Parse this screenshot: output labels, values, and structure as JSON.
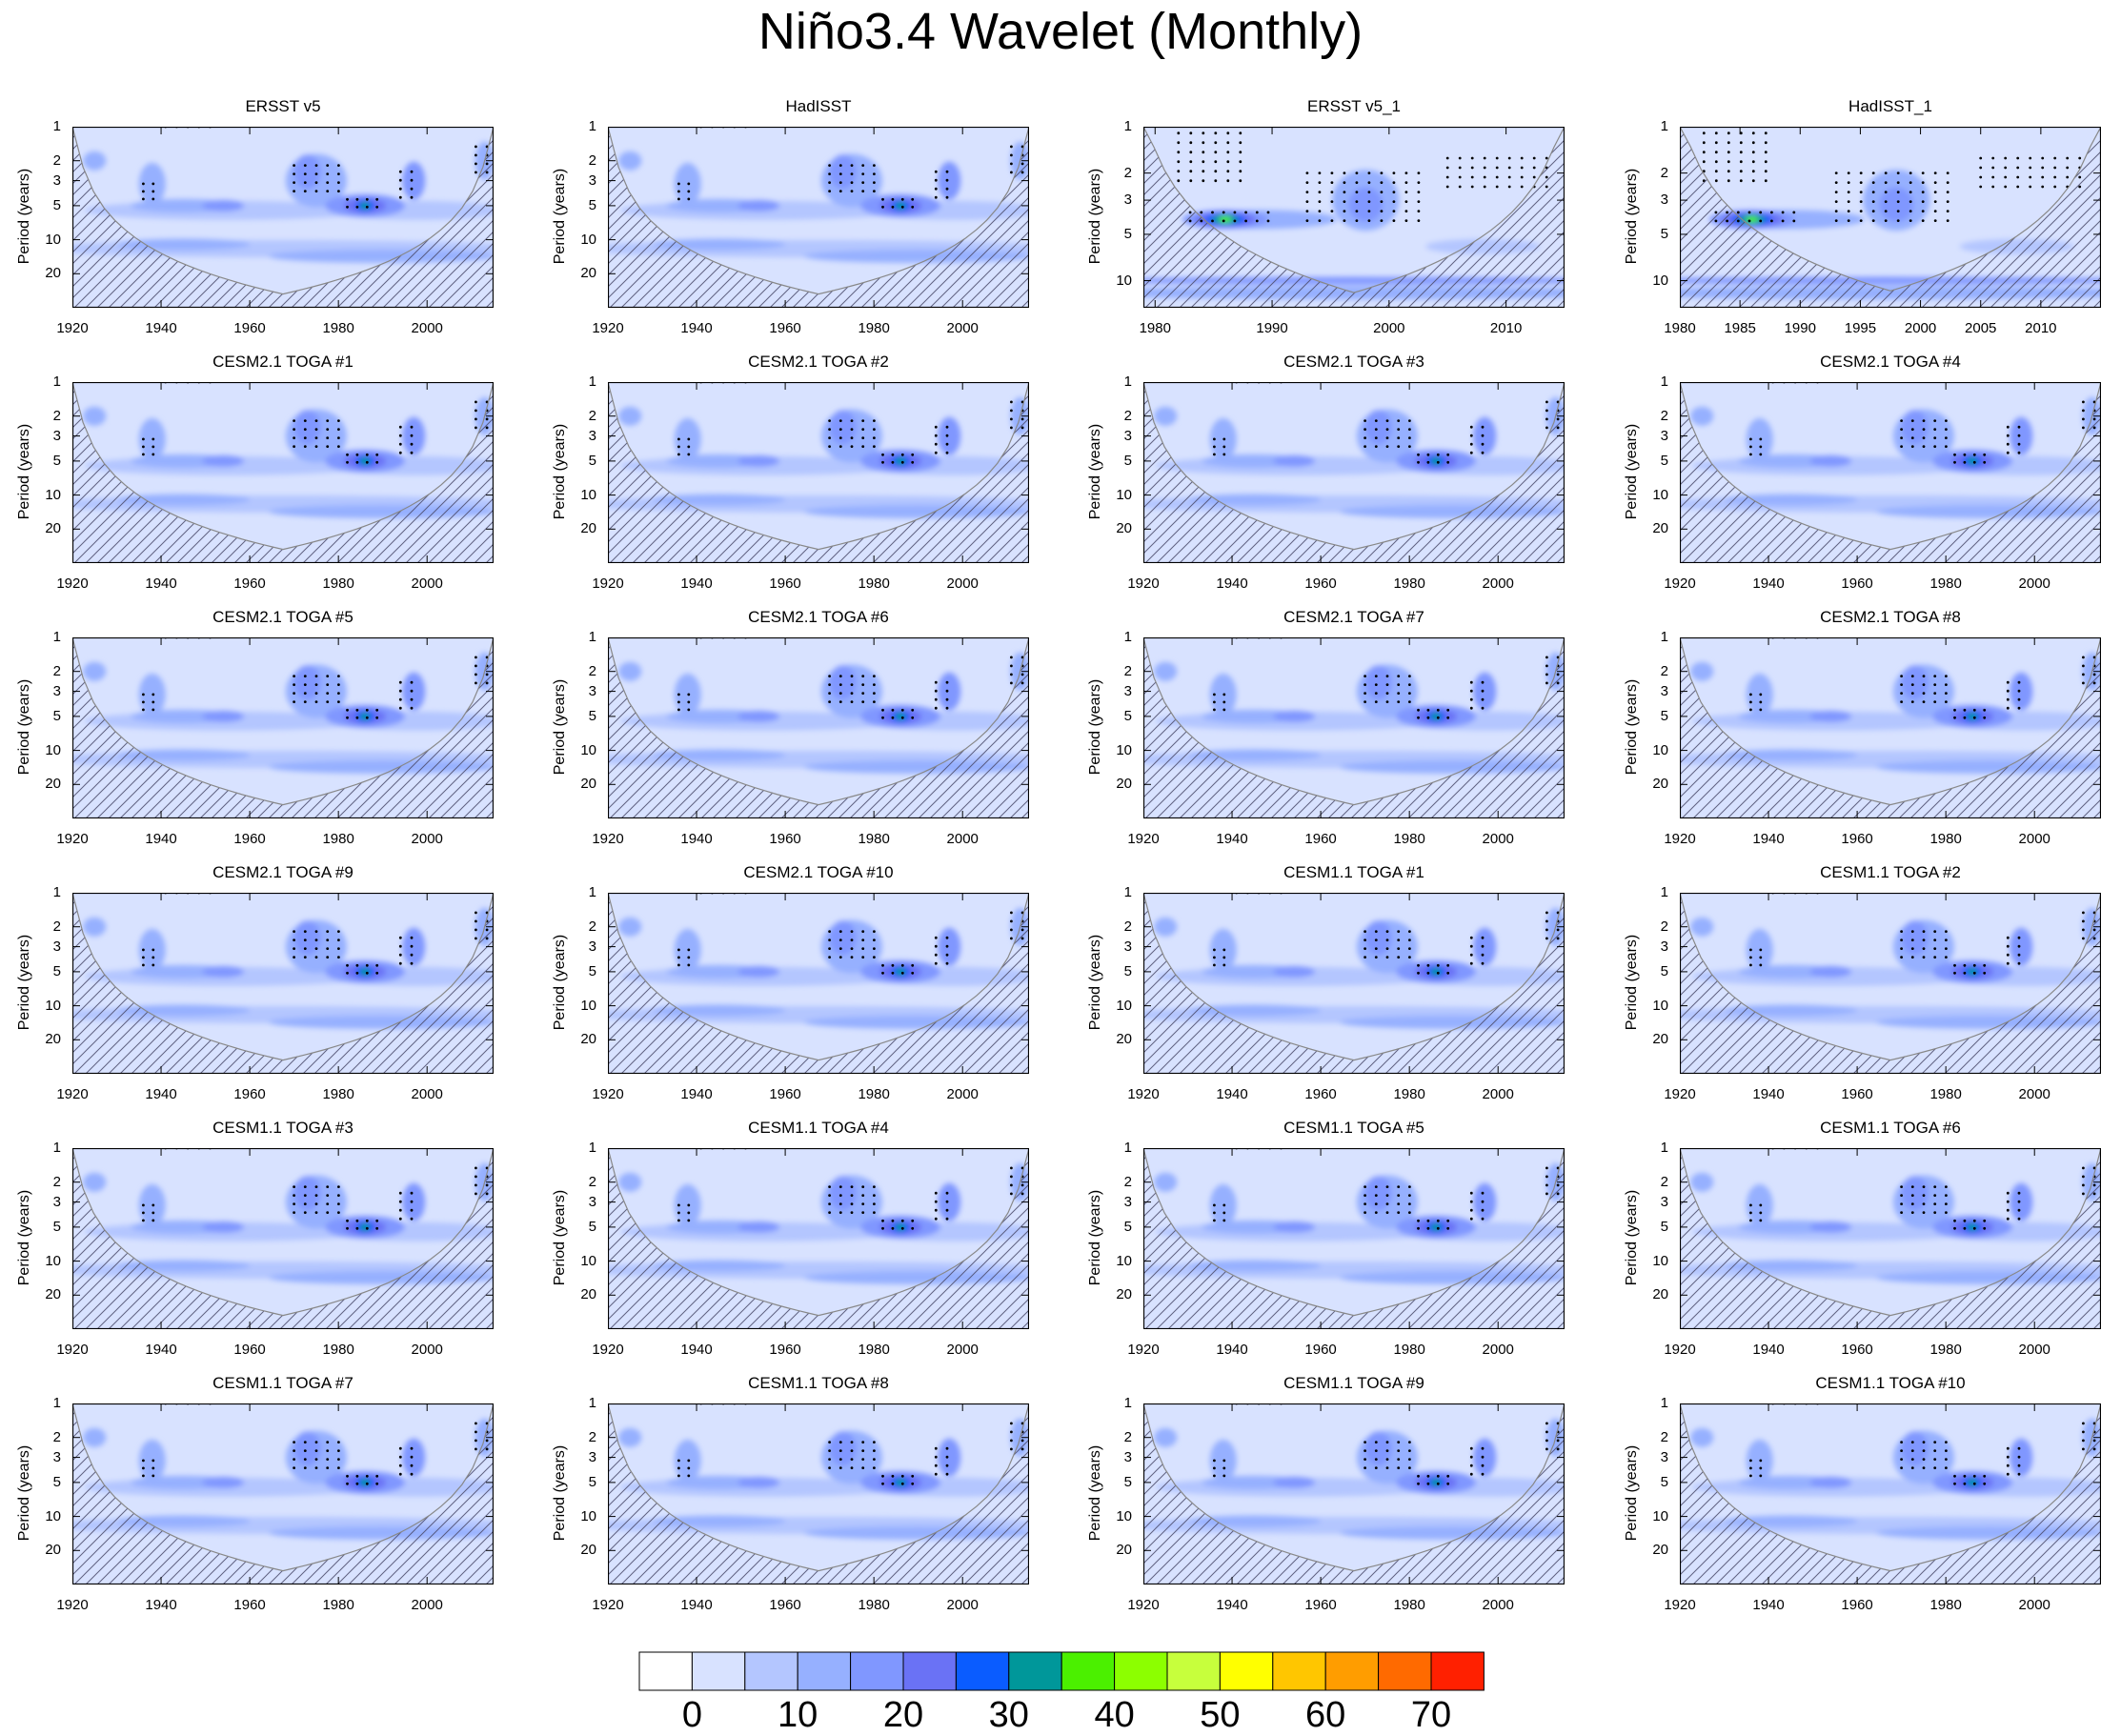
{
  "title": "Niño3.4 Wavelet (Monthly)",
  "ylabel": "Period (years)",
  "chart_data": {
    "type": "heatmap",
    "rows": 6,
    "cols": 4,
    "panels": [
      {
        "title": "ERSST v5",
        "xlim": [
          1920,
          2015
        ],
        "ylim": [
          1,
          40
        ],
        "xticks": [
          1920,
          1940,
          1960,
          1980,
          2000
        ],
        "yticks": [
          1,
          2,
          3,
          5,
          10,
          20
        ]
      },
      {
        "title": "HadISST",
        "xlim": [
          1920,
          2015
        ],
        "ylim": [
          1,
          40
        ],
        "xticks": [
          1920,
          1940,
          1960,
          1980,
          2000
        ],
        "yticks": [
          1,
          2,
          3,
          5,
          10,
          20
        ]
      },
      {
        "title": "ERSST v5_1",
        "xlim": [
          1979,
          2015
        ],
        "ylim": [
          1,
          15
        ],
        "xticks": [
          1980,
          1990,
          2000,
          2010
        ],
        "yticks": [
          1,
          2,
          3,
          5,
          10
        ]
      },
      {
        "title": "HadISST_1",
        "xlim": [
          1980,
          2015
        ],
        "ylim": [
          1,
          15
        ],
        "xticks": [
          1980,
          1985,
          1990,
          1995,
          2000,
          2005,
          2010
        ],
        "yticks": [
          1,
          2,
          3,
          5,
          10
        ]
      },
      {
        "title": "CESM2.1 TOGA #1",
        "xlim": [
          1920,
          2015
        ],
        "ylim": [
          1,
          40
        ],
        "xticks": [
          1920,
          1940,
          1960,
          1980,
          2000
        ],
        "yticks": [
          1,
          2,
          3,
          5,
          10,
          20
        ]
      },
      {
        "title": "CESM2.1 TOGA #2",
        "xlim": [
          1920,
          2015
        ],
        "ylim": [
          1,
          40
        ],
        "xticks": [
          1920,
          1940,
          1960,
          1980,
          2000
        ],
        "yticks": [
          1,
          2,
          3,
          5,
          10,
          20
        ]
      },
      {
        "title": "CESM2.1 TOGA #3",
        "xlim": [
          1920,
          2015
        ],
        "ylim": [
          1,
          40
        ],
        "xticks": [
          1920,
          1940,
          1960,
          1980,
          2000
        ],
        "yticks": [
          1,
          2,
          3,
          5,
          10,
          20
        ]
      },
      {
        "title": "CESM2.1 TOGA #4",
        "xlim": [
          1920,
          2015
        ],
        "ylim": [
          1,
          40
        ],
        "xticks": [
          1920,
          1940,
          1960,
          1980,
          2000
        ],
        "yticks": [
          1,
          2,
          3,
          5,
          10,
          20
        ]
      },
      {
        "title": "CESM2.1 TOGA #5",
        "xlim": [
          1920,
          2015
        ],
        "ylim": [
          1,
          40
        ],
        "xticks": [
          1920,
          1940,
          1960,
          1980,
          2000
        ],
        "yticks": [
          1,
          2,
          3,
          5,
          10,
          20
        ]
      },
      {
        "title": "CESM2.1 TOGA #6",
        "xlim": [
          1920,
          2015
        ],
        "ylim": [
          1,
          40
        ],
        "xticks": [
          1920,
          1940,
          1960,
          1980,
          2000
        ],
        "yticks": [
          1,
          2,
          3,
          5,
          10,
          20
        ]
      },
      {
        "title": "CESM2.1 TOGA #7",
        "xlim": [
          1920,
          2015
        ],
        "ylim": [
          1,
          40
        ],
        "xticks": [
          1920,
          1940,
          1960,
          1980,
          2000
        ],
        "yticks": [
          1,
          2,
          3,
          5,
          10,
          20
        ]
      },
      {
        "title": "CESM2.1 TOGA #8",
        "xlim": [
          1920,
          2015
        ],
        "ylim": [
          1,
          40
        ],
        "xticks": [
          1920,
          1940,
          1960,
          1980,
          2000
        ],
        "yticks": [
          1,
          2,
          3,
          5,
          10,
          20
        ]
      },
      {
        "title": "CESM2.1 TOGA #9",
        "xlim": [
          1920,
          2015
        ],
        "ylim": [
          1,
          40
        ],
        "xticks": [
          1920,
          1940,
          1960,
          1980,
          2000
        ],
        "yticks": [
          1,
          2,
          3,
          5,
          10,
          20
        ]
      },
      {
        "title": "CESM2.1 TOGA #10",
        "xlim": [
          1920,
          2015
        ],
        "ylim": [
          1,
          40
        ],
        "xticks": [
          1920,
          1940,
          1960,
          1980,
          2000
        ],
        "yticks": [
          1,
          2,
          3,
          5,
          10,
          20
        ]
      },
      {
        "title": "CESM1.1 TOGA #1",
        "xlim": [
          1920,
          2015
        ],
        "ylim": [
          1,
          40
        ],
        "xticks": [
          1920,
          1940,
          1960,
          1980,
          2000
        ],
        "yticks": [
          1,
          2,
          3,
          5,
          10,
          20
        ]
      },
      {
        "title": "CESM1.1 TOGA #2",
        "xlim": [
          1920,
          2015
        ],
        "ylim": [
          1,
          40
        ],
        "xticks": [
          1920,
          1940,
          1960,
          1980,
          2000
        ],
        "yticks": [
          1,
          2,
          3,
          5,
          10,
          20
        ]
      },
      {
        "title": "CESM1.1 TOGA #3",
        "xlim": [
          1920,
          2015
        ],
        "ylim": [
          1,
          40
        ],
        "xticks": [
          1920,
          1940,
          1960,
          1980,
          2000
        ],
        "yticks": [
          1,
          2,
          3,
          5,
          10,
          20
        ]
      },
      {
        "title": "CESM1.1 TOGA #4",
        "xlim": [
          1920,
          2015
        ],
        "ylim": [
          1,
          40
        ],
        "xticks": [
          1920,
          1940,
          1960,
          1980,
          2000
        ],
        "yticks": [
          1,
          2,
          3,
          5,
          10,
          20
        ]
      },
      {
        "title": "CESM1.1 TOGA #5",
        "xlim": [
          1920,
          2015
        ],
        "ylim": [
          1,
          40
        ],
        "xticks": [
          1920,
          1940,
          1960,
          1980,
          2000
        ],
        "yticks": [
          1,
          2,
          3,
          5,
          10,
          20
        ]
      },
      {
        "title": "CESM1.1 TOGA #6",
        "xlim": [
          1920,
          2015
        ],
        "ylim": [
          1,
          40
        ],
        "xticks": [
          1920,
          1940,
          1960,
          1980,
          2000
        ],
        "yticks": [
          1,
          2,
          3,
          5,
          10,
          20
        ]
      },
      {
        "title": "CESM1.1 TOGA #7",
        "xlim": [
          1920,
          2015
        ],
        "ylim": [
          1,
          40
        ],
        "xticks": [
          1920,
          1940,
          1960,
          1980,
          2000
        ],
        "yticks": [
          1,
          2,
          3,
          5,
          10,
          20
        ]
      },
      {
        "title": "CESM1.1 TOGA #8",
        "xlim": [
          1920,
          2015
        ],
        "ylim": [
          1,
          40
        ],
        "xticks": [
          1920,
          1940,
          1960,
          1980,
          2000
        ],
        "yticks": [
          1,
          2,
          3,
          5,
          10,
          20
        ]
      },
      {
        "title": "CESM1.1 TOGA #9",
        "xlim": [
          1920,
          2015
        ],
        "ylim": [
          1,
          40
        ],
        "xticks": [
          1920,
          1940,
          1960,
          1980,
          2000
        ],
        "yticks": [
          1,
          2,
          3,
          5,
          10,
          20
        ]
      },
      {
        "title": "CESM1.1 TOGA #10",
        "xlim": [
          1920,
          2015
        ],
        "ylim": [
          1,
          40
        ],
        "xticks": [
          1920,
          1940,
          1960,
          1980,
          2000
        ],
        "yticks": [
          1,
          2,
          3,
          5,
          10,
          20
        ]
      }
    ],
    "colorbar": {
      "colors": [
        "#ffffff",
        "#d8e2ff",
        "#b4c6ff",
        "#96b0ff",
        "#8097ff",
        "#6a72f5",
        "#0a5cff",
        "#00979a",
        "#4bf000",
        "#8cff00",
        "#c7ff3c",
        "#ffff00",
        "#ffc600",
        "#ff9d00",
        "#ff6a00",
        "#ff2000"
      ],
      "labels": [
        "0",
        "10",
        "20",
        "30",
        "40",
        "50",
        "60",
        "70"
      ]
    }
  }
}
